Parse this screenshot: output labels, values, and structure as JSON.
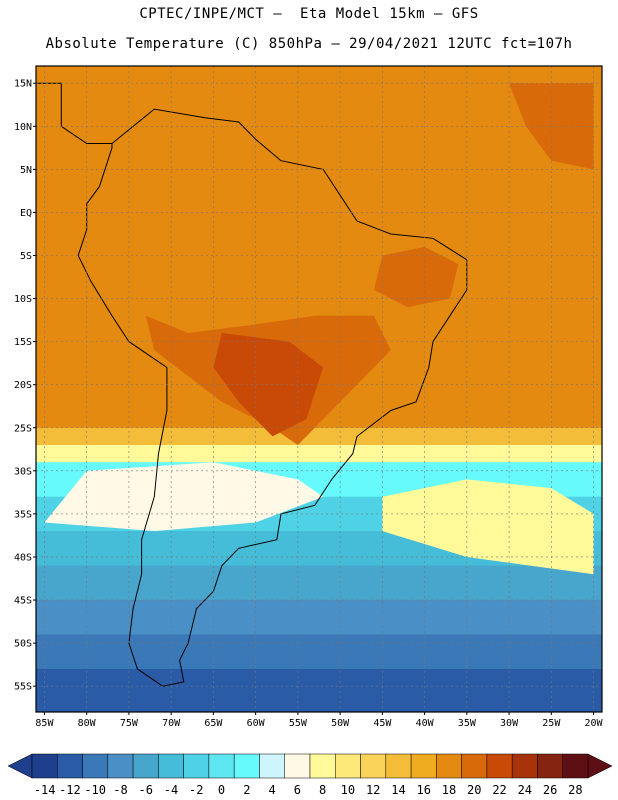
{
  "title_line1": "CPTEC/INPE/MCT –  Eta Model 15km – GFS",
  "title_line2": "Absolute Temperature (C) 850hPa – 29/04/2021 12UTC fct=107h",
  "map": {
    "lon_range": [
      -86,
      -19
    ],
    "lat_range": [
      -58,
      17
    ],
    "lat_labels": [
      {
        "v": 15,
        "t": "15N"
      },
      {
        "v": 10,
        "t": "10N"
      },
      {
        "v": 5,
        "t": "5N"
      },
      {
        "v": 0,
        "t": "EQ"
      },
      {
        "v": -5,
        "t": "5S"
      },
      {
        "v": -10,
        "t": "10S"
      },
      {
        "v": -15,
        "t": "15S"
      },
      {
        "v": -20,
        "t": "20S"
      },
      {
        "v": -25,
        "t": "25S"
      },
      {
        "v": -30,
        "t": "30S"
      },
      {
        "v": -35,
        "t": "35S"
      },
      {
        "v": -40,
        "t": "40S"
      },
      {
        "v": -45,
        "t": "45S"
      },
      {
        "v": -50,
        "t": "50S"
      },
      {
        "v": -55,
        "t": "55S"
      }
    ],
    "lon_labels": [
      {
        "v": -85,
        "t": "85W"
      },
      {
        "v": -80,
        "t": "80W"
      },
      {
        "v": -75,
        "t": "75W"
      },
      {
        "v": -70,
        "t": "70W"
      },
      {
        "v": -65,
        "t": "65W"
      },
      {
        "v": -60,
        "t": "60W"
      },
      {
        "v": -55,
        "t": "55W"
      },
      {
        "v": -50,
        "t": "50W"
      },
      {
        "v": -45,
        "t": "45W"
      },
      {
        "v": -40,
        "t": "40W"
      },
      {
        "v": -35,
        "t": "35W"
      },
      {
        "v": -30,
        "t": "30W"
      },
      {
        "v": -25,
        "t": "25W"
      },
      {
        "v": -20,
        "t": "20W"
      }
    ],
    "grid": true,
    "bands": [
      {
        "lat": 17,
        "class": 16
      },
      {
        "lat": -20,
        "class": 16
      },
      {
        "lat": -25,
        "class": 14
      },
      {
        "lat": -27,
        "class": 11
      },
      {
        "lat": -29,
        "class": 8
      },
      {
        "lat": -33,
        "class": 6
      },
      {
        "lat": -37,
        "class": 5
      },
      {
        "lat": -41,
        "class": 4
      },
      {
        "lat": -45,
        "class": 3
      },
      {
        "lat": -49,
        "class": 2
      },
      {
        "lat": -53,
        "class": 1
      },
      {
        "lat": -58,
        "class": 0
      }
    ]
  },
  "legend": {
    "colors": [
      "#1e3f8c",
      "#2a5ba6",
      "#3a78b8",
      "#4a90c6",
      "#48a6cc",
      "#45bcd8",
      "#4fd2e6",
      "#5ee6f0",
      "#66fafc",
      "#cdf5fb",
      "#fff9e6",
      "#fff99a",
      "#fde87a",
      "#f9d458",
      "#f3bd39",
      "#eeab20",
      "#e58a10",
      "#d96a0a",
      "#c84a06",
      "#a8320a",
      "#862412",
      "#5e0f14"
    ],
    "min_color": "#1e3f8c",
    "max_color": "#5e0f14",
    "ticks": [
      "-14",
      "-12",
      "-10",
      "-8",
      "-6",
      "-4",
      "-2",
      "0",
      "2",
      "4",
      "6",
      "8",
      "10",
      "12",
      "14",
      "16",
      "18",
      "20",
      "22",
      "24",
      "26",
      "28"
    ]
  }
}
